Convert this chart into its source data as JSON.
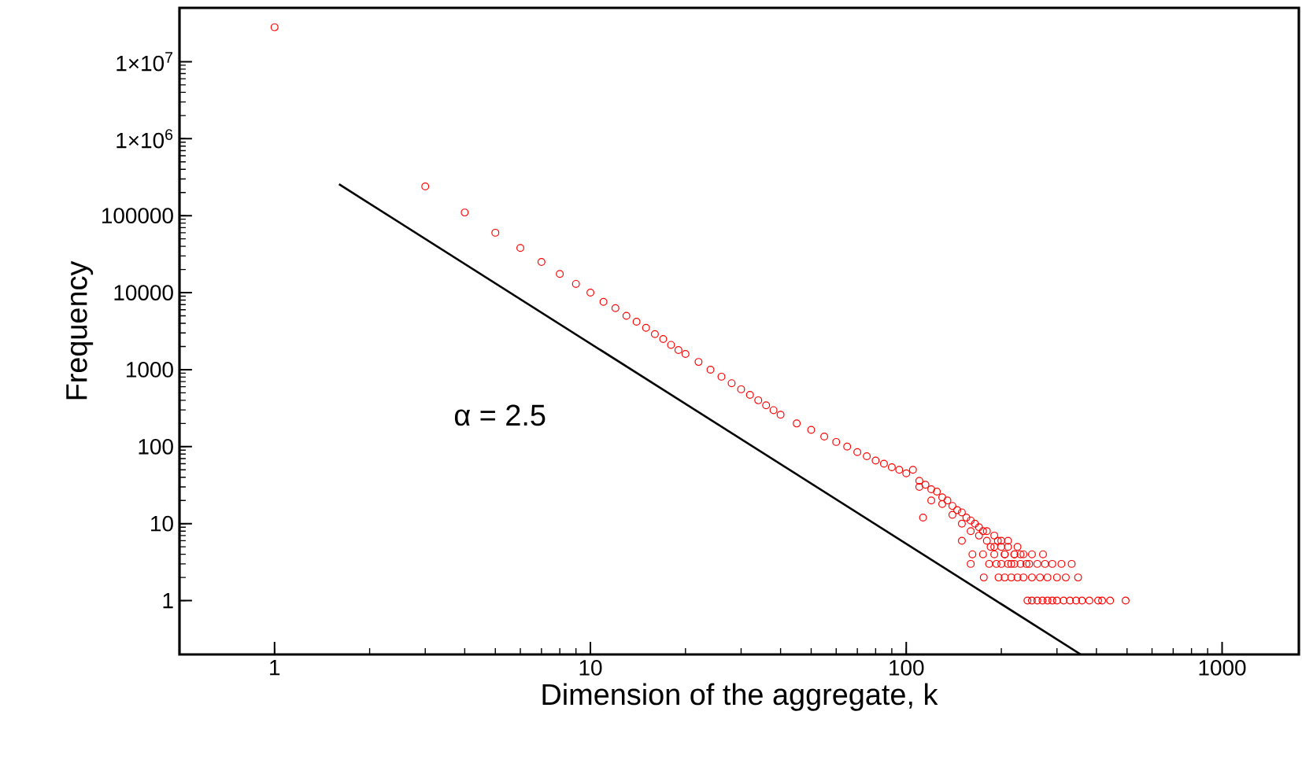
{
  "chart_data": {
    "type": "scatter",
    "xlabel": "Dimension of the aggregate, k",
    "ylabel": "Frequency",
    "log": "xy",
    "annotations": [
      "α = 2.5"
    ],
    "xlim": [
      0.5,
      1750
    ],
    "ylim": [
      0.2,
      50000000
    ],
    "xticks": [
      1,
      10,
      100,
      1000
    ],
    "yticks": [
      1,
      10,
      100,
      1000,
      10000,
      100000,
      {
        "value": 1000000,
        "label": "1×10$^{6}$"
      },
      {
        "value": 10000000,
        "label": "1×10$^{7}$"
      }
    ],
    "series": [
      {
        "marker": "circle",
        "color": "#ff0000",
        "x": [
          1,
          3,
          4,
          5,
          6,
          7,
          8,
          9,
          10,
          11,
          12,
          13,
          14,
          15,
          16,
          17,
          18,
          19,
          20,
          22,
          24,
          26,
          28,
          30,
          32,
          34,
          36,
          38,
          40,
          45,
          50,
          55,
          60,
          65,
          70,
          75,
          80,
          85,
          90,
          95,
          100,
          110,
          120,
          130,
          140,
          150,
          160,
          170,
          180,
          190,
          200,
          210,
          220,
          105,
          110,
          115,
          120,
          125,
          130,
          135,
          140,
          145,
          150,
          155,
          160,
          165,
          170,
          175,
          180,
          185,
          190,
          195,
          200,
          205,
          210,
          215,
          225,
          230,
          240,
          113,
          150,
          162,
          175,
          190,
          205,
          220,
          235,
          250,
          271,
          160,
          183,
          193,
          200,
          210,
          220,
          230,
          245,
          260,
          275,
          290,
          310,
          334,
          176,
          196,
          205,
          215,
          225,
          235,
          250,
          265,
          280,
          300,
          320,
          350,
          242,
          250,
          260,
          270,
          280,
          290,
          300,
          315,
          330,
          345,
          360,
          380,
          405,
          417,
          442,
          495
        ],
        "values": [
          28000000,
          240000,
          110000,
          60000,
          38000,
          25000,
          17500,
          13000,
          10000,
          7600,
          6300,
          5000,
          4200,
          3500,
          2900,
          2500,
          2100,
          1800,
          1600,
          1260,
          1000,
          810,
          667,
          556,
          470,
          400,
          345,
          298,
          260,
          200,
          165,
          135,
          115,
          100,
          85,
          75,
          66,
          60,
          54,
          50,
          45,
          36,
          28,
          22,
          17,
          14,
          11,
          9,
          8,
          7,
          6,
          5,
          4,
          50,
          30,
          32,
          20,
          26,
          18,
          20,
          13,
          15,
          10,
          12,
          8,
          10,
          7,
          8,
          6,
          5,
          5,
          6,
          5,
          4,
          6,
          3,
          5,
          4,
          3,
          12,
          6,
          4,
          4,
          4,
          4,
          4,
          4,
          4,
          4,
          3,
          3,
          3,
          3,
          3,
          3,
          3,
          3,
          3,
          3,
          3,
          3,
          3,
          2,
          2,
          2,
          2,
          2,
          2,
          2,
          2,
          2,
          2,
          2,
          2,
          1,
          1,
          1,
          1,
          1,
          1,
          1,
          1,
          1,
          1,
          1,
          1,
          1,
          1,
          1,
          1
        ]
      },
      {
        "type": "line",
        "marker": "none",
        "color": "#000000",
        "x": [
          1.6,
          357
        ],
        "values": [
          256000,
          0.2
        ]
      }
    ]
  }
}
